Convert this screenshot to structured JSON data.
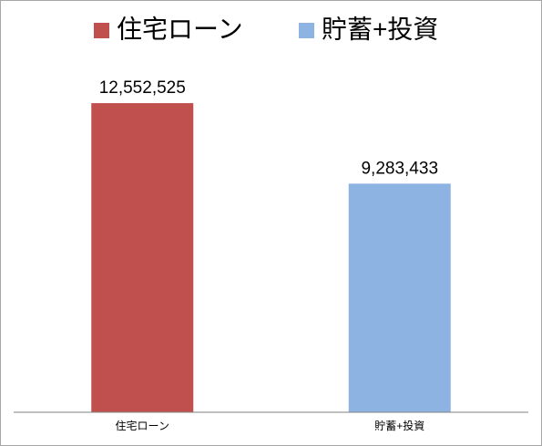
{
  "chart_data": {
    "type": "bar",
    "categories": [
      "住宅ローン",
      "貯蓄+投資"
    ],
    "values": [
      12552525,
      9283433
    ],
    "value_labels": [
      "12,552,525",
      "9,283,433"
    ],
    "colors": [
      "#c0504d",
      "#8db3e2"
    ],
    "ylim": [
      0,
      14000000
    ],
    "legend": "top"
  }
}
